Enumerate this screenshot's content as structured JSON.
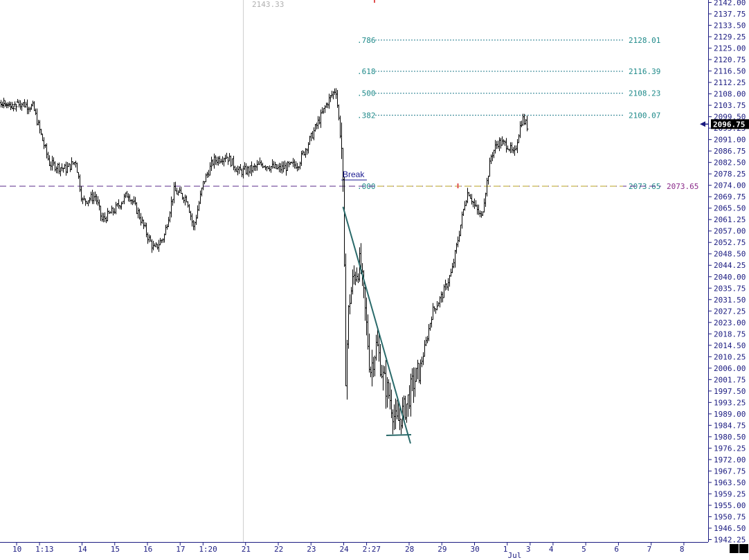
{
  "chart_data": {
    "type": "ohlc",
    "ylim": [
      1941,
      2143
    ],
    "y_ticks": [
      2142.0,
      2137.75,
      2133.5,
      2129.25,
      2125.0,
      2120.75,
      2116.5,
      2112.25,
      2108.0,
      2103.75,
      2099.5,
      2095.25,
      2091.0,
      2086.75,
      2082.5,
      2078.25,
      2074.0,
      2069.75,
      2065.5,
      2061.25,
      2057.0,
      2052.75,
      2048.5,
      2044.25,
      2040.0,
      2035.75,
      2031.5,
      2027.25,
      2023.0,
      2018.75,
      2014.5,
      2010.25,
      2006.0,
      2001.75,
      1997.5,
      1993.25,
      1989.0,
      1984.75,
      1980.5,
      1976.25,
      1972.0,
      1967.75,
      1963.5,
      1959.25,
      1955.0,
      1950.75,
      1946.5,
      1942.25
    ],
    "y_tick_labels": [
      "2142.00",
      "2137.75",
      "2133.50",
      "2129.25",
      "2125.00",
      "2120.75",
      "2116.50",
      "2112.25",
      "2108.00",
      "2103.75",
      "2099.50",
      "2095.25",
      "2091.00",
      "2086.75",
      "2082.50",
      "2078.25",
      "2074.00",
      "2069.75",
      "2065.50",
      "2061.25",
      "2057.00",
      "2052.75",
      "2048.50",
      "2044.25",
      "2040.00",
      "2035.75",
      "2031.50",
      "2027.25",
      "2023.00",
      "2018.75",
      "2014.50",
      "2010.25",
      "2006.00",
      "2001.75",
      "1997.50",
      "1993.25",
      "1989.00",
      "1984.75",
      "1980.50",
      "1976.25",
      "1972.00",
      "1967.75",
      "1963.50",
      "1959.25",
      "1955.00",
      "1950.75",
      "1946.50",
      "1942.25"
    ],
    "x_ticks": [
      {
        "label": "10",
        "day": 0
      },
      {
        "label": "1:13",
        "day": 0.7
      },
      {
        "label": "14",
        "day": 2
      },
      {
        "label": "15",
        "day": 3
      },
      {
        "label": "16",
        "day": 4
      },
      {
        "label": "17",
        "day": 5
      },
      {
        "label": "1:20",
        "day": 5.7
      },
      {
        "label": "21",
        "day": 7
      },
      {
        "label": "22",
        "day": 8
      },
      {
        "label": "23",
        "day": 9
      },
      {
        "label": "24",
        "day": 10
      },
      {
        "label": "2:27",
        "day": 10.7
      },
      {
        "label": "28",
        "day": 12
      },
      {
        "label": "29",
        "day": 13
      },
      {
        "label": "30",
        "day": 14
      },
      {
        "label": "1",
        "day": 15
      },
      {
        "label": "3",
        "day": 15.7
      },
      {
        "label": "4",
        "day": 16.4
      },
      {
        "label": "5",
        "day": 17.4
      },
      {
        "label": "6",
        "day": 18.4
      },
      {
        "label": "7",
        "day": 19.4
      },
      {
        "label": "8",
        "day": 20.4
      }
    ],
    "month_label": {
      "label": "Jul",
      "day": 15.1
    },
    "reference_value_label": "2143.33",
    "current_price": 2096.75,
    "current_price_label": "2096.75",
    "break_label": "Break",
    "horizontal_line": {
      "value": 2073.65,
      "label": "2073.65"
    },
    "fib_levels": [
      {
        "ratio": ".786",
        "value": 2128.01,
        "label": "2128.01"
      },
      {
        "ratio": ".618",
        "value": 2116.39,
        "label": "2116.39"
      },
      {
        "ratio": ".500",
        "value": 2108.23,
        "label": "2108.23"
      },
      {
        "ratio": ".382",
        "value": 2100.07,
        "label": "2100.07"
      },
      {
        "ratio": ".000",
        "value": 2073.65,
        "label": "2073.65"
      }
    ],
    "trendline": {
      "start": {
        "day": 10.0,
        "value": 2066
      },
      "end": {
        "day": 12.0,
        "value": 1978
      }
    },
    "anchors": [
      {
        "day": 0.0,
        "value": 2105
      },
      {
        "day": 0.5,
        "value": 2103
      },
      {
        "day": 0.8,
        "value": 2090
      },
      {
        "day": 1.0,
        "value": 2082
      },
      {
        "day": 1.5,
        "value": 2080
      },
      {
        "day": 1.8,
        "value": 2083
      },
      {
        "day": 2.0,
        "value": 2068
      },
      {
        "day": 2.4,
        "value": 2070
      },
      {
        "day": 2.6,
        "value": 2061
      },
      {
        "day": 3.0,
        "value": 2065
      },
      {
        "day": 3.4,
        "value": 2071
      },
      {
        "day": 3.7,
        "value": 2064
      },
      {
        "day": 4.0,
        "value": 2055
      },
      {
        "day": 4.2,
        "value": 2050
      },
      {
        "day": 4.5,
        "value": 2055
      },
      {
        "day": 4.8,
        "value": 2072
      },
      {
        "day": 5.2,
        "value": 2069
      },
      {
        "day": 5.4,
        "value": 2058
      },
      {
        "day": 5.7,
        "value": 2075
      },
      {
        "day": 6.0,
        "value": 2083
      },
      {
        "day": 6.4,
        "value": 2085
      },
      {
        "day": 6.8,
        "value": 2079
      },
      {
        "day": 7.2,
        "value": 2080
      },
      {
        "day": 7.5,
        "value": 2082
      },
      {
        "day": 8.0,
        "value": 2080
      },
      {
        "day": 8.6,
        "value": 2082
      },
      {
        "day": 9.0,
        "value": 2092
      },
      {
        "day": 9.5,
        "value": 2105
      },
      {
        "day": 9.75,
        "value": 2110
      },
      {
        "day": 9.95,
        "value": 2085
      },
      {
        "day": 10.0,
        "value": 2050
      },
      {
        "day": 10.05,
        "value": 2003
      },
      {
        "day": 10.15,
        "value": 2030
      },
      {
        "day": 10.3,
        "value": 2040
      },
      {
        "day": 10.5,
        "value": 2045
      },
      {
        "day": 10.7,
        "value": 2020
      },
      {
        "day": 10.8,
        "value": 2005
      },
      {
        "day": 11.0,
        "value": 2015
      },
      {
        "day": 11.2,
        "value": 2002
      },
      {
        "day": 11.4,
        "value": 1995
      },
      {
        "day": 11.6,
        "value": 1985
      },
      {
        "day": 11.9,
        "value": 1992
      },
      {
        "day": 12.1,
        "value": 2000
      },
      {
        "day": 12.3,
        "value": 2005
      },
      {
        "day": 12.5,
        "value": 2015
      },
      {
        "day": 12.7,
        "value": 2027
      },
      {
        "day": 13.0,
        "value": 2033
      },
      {
        "day": 13.3,
        "value": 2042
      },
      {
        "day": 13.5,
        "value": 2055
      },
      {
        "day": 13.7,
        "value": 2068
      },
      {
        "day": 13.8,
        "value": 2072
      },
      {
        "day": 14.0,
        "value": 2066
      },
      {
        "day": 14.2,
        "value": 2062
      },
      {
        "day": 14.3,
        "value": 2070
      },
      {
        "day": 14.5,
        "value": 2085
      },
      {
        "day": 14.7,
        "value": 2090
      },
      {
        "day": 15.0,
        "value": 2089
      },
      {
        "day": 15.2,
        "value": 2085
      },
      {
        "day": 15.35,
        "value": 2094
      },
      {
        "day": 15.45,
        "value": 2099
      },
      {
        "day": 15.6,
        "value": 2096
      }
    ]
  }
}
